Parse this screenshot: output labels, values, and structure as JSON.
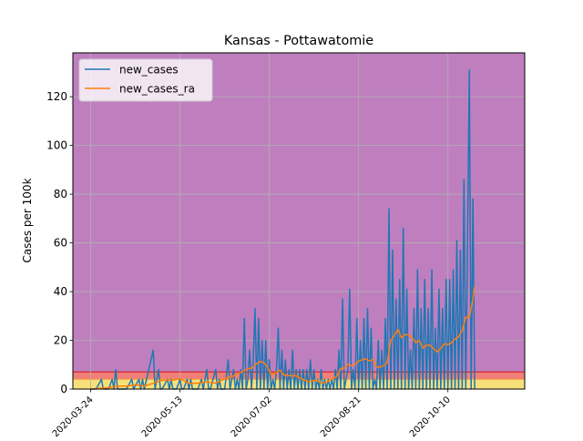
{
  "chart_data": {
    "type": "line",
    "title": "Kansas - Pottawatomie",
    "xlabel": "",
    "ylabel": "Cases per 100k",
    "x_tick_labels": [
      "2020-03-24",
      "2020-05-13",
      "2020-07-02",
      "2020-08-21",
      "2020-10-10"
    ],
    "x_tick_days": [
      0,
      50,
      100,
      150,
      200
    ],
    "x_range_days": [
      -10,
      243
    ],
    "ylim": [
      0,
      138
    ],
    "y_ticks": [
      0,
      20,
      40,
      60,
      80,
      100,
      120
    ],
    "grid": true,
    "legend_position": "top-left",
    "bands": [
      {
        "from": 0,
        "to": 4,
        "color": "#f7e07a"
      },
      {
        "from": 4,
        "to": 7,
        "color": "#f07f7a"
      },
      {
        "from": 7,
        "to": 138,
        "color": "#bf7fbf"
      }
    ],
    "band_lines": [
      {
        "y": 4,
        "color": "#f5a640"
      },
      {
        "y": 7,
        "color": "#d62728"
      }
    ],
    "series": [
      {
        "name": "new_cases",
        "color": "#1f77b4",
        "points": [
          [
            0,
            0
          ],
          [
            3,
            0
          ],
          [
            6,
            4
          ],
          [
            7,
            0
          ],
          [
            10,
            0
          ],
          [
            12,
            4
          ],
          [
            13,
            0
          ],
          [
            14,
            8
          ],
          [
            15,
            0
          ],
          [
            18,
            0
          ],
          [
            20,
            0
          ],
          [
            23,
            4
          ],
          [
            24,
            0
          ],
          [
            27,
            4
          ],
          [
            28,
            0
          ],
          [
            29,
            4
          ],
          [
            30,
            0
          ],
          [
            35,
            16
          ],
          [
            36,
            0
          ],
          [
            38,
            8
          ],
          [
            39,
            0
          ],
          [
            40,
            0
          ],
          [
            43,
            4
          ],
          [
            44,
            0
          ],
          [
            45,
            4
          ],
          [
            46,
            0
          ],
          [
            48,
            0
          ],
          [
            50,
            4
          ],
          [
            51,
            0
          ],
          [
            52,
            0
          ],
          [
            54,
            4
          ],
          [
            55,
            0
          ],
          [
            56,
            4
          ],
          [
            57,
            0
          ],
          [
            60,
            0
          ],
          [
            62,
            4
          ],
          [
            63,
            0
          ],
          [
            65,
            8
          ],
          [
            66,
            0
          ],
          [
            67,
            0
          ],
          [
            70,
            8
          ],
          [
            71,
            0
          ],
          [
            72,
            4
          ],
          [
            73,
            0
          ],
          [
            75,
            0
          ],
          [
            77,
            12
          ],
          [
            78,
            0
          ],
          [
            80,
            8
          ],
          [
            81,
            0
          ],
          [
            82,
            4
          ],
          [
            83,
            0
          ],
          [
            84,
            8
          ],
          [
            85,
            0
          ],
          [
            86,
            29
          ],
          [
            87,
            0
          ],
          [
            88,
            4
          ],
          [
            89,
            16
          ],
          [
            90,
            0
          ],
          [
            91,
            12
          ],
          [
            92,
            33
          ],
          [
            93,
            0
          ],
          [
            94,
            29
          ],
          [
            95,
            0
          ],
          [
            96,
            20
          ],
          [
            97,
            0
          ],
          [
            98,
            20
          ],
          [
            99,
            0
          ],
          [
            100,
            12
          ],
          [
            101,
            0
          ],
          [
            102,
            4
          ],
          [
            103,
            0
          ],
          [
            104,
            8
          ],
          [
            105,
            25
          ],
          [
            106,
            0
          ],
          [
            107,
            16
          ],
          [
            108,
            0
          ],
          [
            109,
            12
          ],
          [
            110,
            0
          ],
          [
            111,
            8
          ],
          [
            112,
            0
          ],
          [
            113,
            16
          ],
          [
            114,
            0
          ],
          [
            115,
            8
          ],
          [
            116,
            0
          ],
          [
            117,
            8
          ],
          [
            118,
            0
          ],
          [
            119,
            8
          ],
          [
            120,
            0
          ],
          [
            121,
            8
          ],
          [
            122,
            0
          ],
          [
            123,
            12
          ],
          [
            124,
            0
          ],
          [
            125,
            8
          ],
          [
            126,
            0
          ],
          [
            127,
            4
          ],
          [
            128,
            0
          ],
          [
            129,
            8
          ],
          [
            130,
            0
          ],
          [
            131,
            4
          ],
          [
            132,
            0
          ],
          [
            133,
            4
          ],
          [
            134,
            0
          ],
          [
            135,
            4
          ],
          [
            136,
            0
          ],
          [
            137,
            8
          ],
          [
            138,
            0
          ],
          [
            139,
            16
          ],
          [
            140,
            0
          ],
          [
            141,
            37
          ],
          [
            142,
            0
          ],
          [
            143,
            4
          ],
          [
            144,
            8
          ],
          [
            145,
            41
          ],
          [
            146,
            0
          ],
          [
            147,
            8
          ],
          [
            148,
            0
          ],
          [
            149,
            29
          ],
          [
            150,
            0
          ],
          [
            151,
            20
          ],
          [
            152,
            0
          ],
          [
            153,
            29
          ],
          [
            154,
            0
          ],
          [
            155,
            33
          ],
          [
            156,
            0
          ],
          [
            157,
            25
          ],
          [
            158,
            0
          ],
          [
            159,
            4
          ],
          [
            160,
            0
          ],
          [
            161,
            20
          ],
          [
            162,
            0
          ],
          [
            163,
            16
          ],
          [
            164,
            0
          ],
          [
            165,
            29
          ],
          [
            166,
            0
          ],
          [
            167,
            74
          ],
          [
            168,
            0
          ],
          [
            169,
            57
          ],
          [
            170,
            0
          ],
          [
            171,
            37
          ],
          [
            172,
            0
          ],
          [
            173,
            45
          ],
          [
            174,
            0
          ],
          [
            175,
            66
          ],
          [
            176,
            0
          ],
          [
            177,
            41
          ],
          [
            178,
            0
          ],
          [
            179,
            16
          ],
          [
            180,
            0
          ],
          [
            181,
            33
          ],
          [
            182,
            0
          ],
          [
            183,
            49
          ],
          [
            184,
            0
          ],
          [
            185,
            33
          ],
          [
            186,
            0
          ],
          [
            187,
            45
          ],
          [
            188,
            0
          ],
          [
            189,
            33
          ],
          [
            190,
            0
          ],
          [
            191,
            49
          ],
          [
            192,
            0
          ],
          [
            193,
            25
          ],
          [
            194,
            0
          ],
          [
            195,
            41
          ],
          [
            196,
            0
          ],
          [
            197,
            33
          ],
          [
            198,
            0
          ],
          [
            199,
            45
          ],
          [
            200,
            0
          ],
          [
            201,
            45
          ],
          [
            202,
            0
          ],
          [
            203,
            49
          ],
          [
            204,
            0
          ],
          [
            205,
            61
          ],
          [
            206,
            0
          ],
          [
            207,
            57
          ],
          [
            208,
            0
          ],
          [
            209,
            86
          ],
          [
            210,
            0
          ],
          [
            211,
            61
          ],
          [
            212,
            131
          ],
          [
            213,
            0
          ],
          [
            214,
            78
          ],
          [
            215,
            0
          ]
        ]
      },
      {
        "name": "new_cases_ra",
        "color": "#ff7f0e",
        "points": [
          [
            0,
            0
          ],
          [
            10,
            0.6
          ],
          [
            15,
            1.2
          ],
          [
            20,
            1.2
          ],
          [
            25,
            1.8
          ],
          [
            30,
            1.2
          ],
          [
            35,
            2.4
          ],
          [
            40,
            3.6
          ],
          [
            45,
            3.6
          ],
          [
            50,
            4.2
          ],
          [
            55,
            2.4
          ],
          [
            60,
            2.4
          ],
          [
            65,
            3
          ],
          [
            70,
            2.4
          ],
          [
            75,
            4.2
          ],
          [
            80,
            5.4
          ],
          [
            85,
            7.2
          ],
          [
            88,
            8.4
          ],
          [
            90,
            8.5
          ],
          [
            93,
            10.5
          ],
          [
            95,
            11.3
          ],
          [
            97,
            10.8
          ],
          [
            99,
            9
          ],
          [
            101,
            6
          ],
          [
            104,
            6.8
          ],
          [
            106,
            7.8
          ],
          [
            108,
            5.8
          ],
          [
            112,
            5.4
          ],
          [
            115,
            5.4
          ],
          [
            118,
            4.2
          ],
          [
            122,
            3
          ],
          [
            126,
            3.6
          ],
          [
            130,
            2.4
          ],
          [
            134,
            3.6
          ],
          [
            138,
            5.4
          ],
          [
            140,
            8.4
          ],
          [
            142,
            8.6
          ],
          [
            144,
            10.2
          ],
          [
            146,
            9.6
          ],
          [
            148,
            10
          ],
          [
            150,
            11.5
          ],
          [
            152,
            12
          ],
          [
            154,
            12.4
          ],
          [
            156,
            11.5
          ],
          [
            158,
            12.2
          ],
          [
            160,
            9
          ],
          [
            162,
            9
          ],
          [
            164,
            9.6
          ],
          [
            166,
            10.8
          ],
          [
            168,
            20
          ],
          [
            170,
            22
          ],
          [
            172,
            24.5
          ],
          [
            174,
            21
          ],
          [
            176,
            22.3
          ],
          [
            178,
            22.3
          ],
          [
            180,
            21
          ],
          [
            182,
            19
          ],
          [
            184,
            20
          ],
          [
            186,
            16.8
          ],
          [
            188,
            18
          ],
          [
            190,
            18
          ],
          [
            192,
            16.6
          ],
          [
            194,
            15.2
          ],
          [
            196,
            16.8
          ],
          [
            198,
            18.6
          ],
          [
            200,
            18.2
          ],
          [
            202,
            19
          ],
          [
            204,
            20.6
          ],
          [
            206,
            21.4
          ],
          [
            208,
            24
          ],
          [
            210,
            29.6
          ],
          [
            212,
            29.3
          ],
          [
            214,
            37
          ],
          [
            215,
            42
          ]
        ]
      }
    ]
  }
}
